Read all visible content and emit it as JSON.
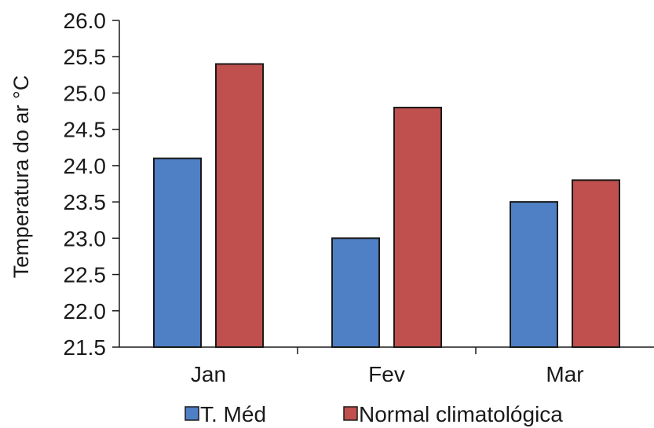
{
  "chart_data": {
    "type": "bar",
    "title": "",
    "xlabel": "",
    "ylabel": "Temperatura do ar °C",
    "categories": [
      "Jan",
      "Fev",
      "Mar"
    ],
    "series": [
      {
        "name": "T. Méd",
        "values": [
          24.1,
          23.0,
          23.5
        ],
        "color": "#4f7fc4"
      },
      {
        "name": "Normal climatológica",
        "values": [
          25.4,
          24.8,
          23.8
        ],
        "color": "#c0504d"
      }
    ],
    "ylim": [
      21.5,
      26.0
    ],
    "yticks": [
      "21.5",
      "22.0",
      "22.5",
      "23.0",
      "23.5",
      "24.0",
      "24.5",
      "25.0",
      "25.5",
      "26.0"
    ],
    "grid": false,
    "legend": "bottom"
  }
}
